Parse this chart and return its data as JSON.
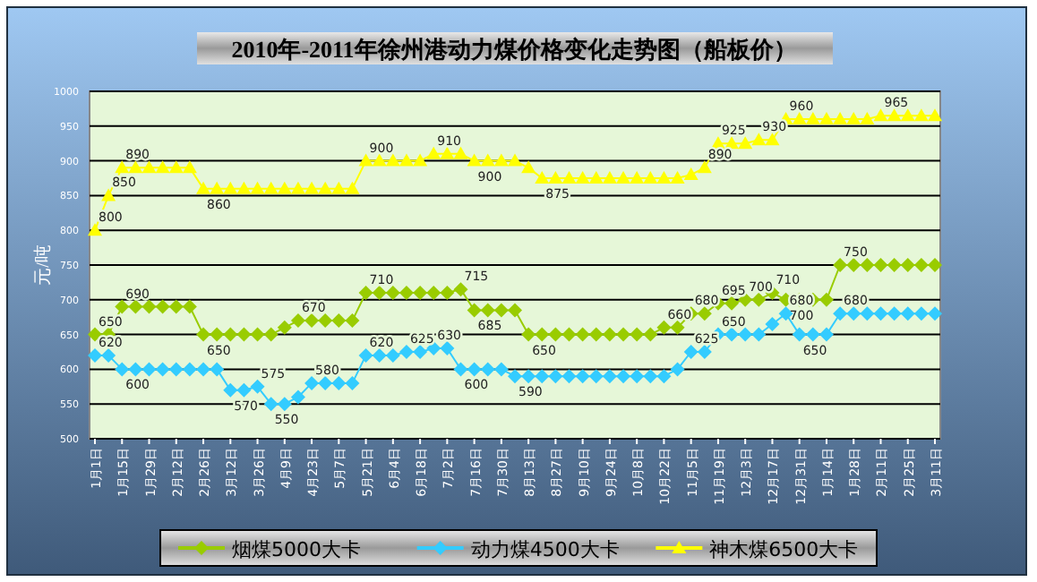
{
  "chart_data": {
    "type": "line",
    "title": "2010年-2011年徐州港动力煤价格变化走势图（船板价）",
    "ylabel": "元/吨",
    "categories": [
      "1月1日",
      null,
      "1月15日",
      null,
      "1月29日",
      null,
      "2月12日",
      null,
      "2月26日",
      null,
      "3月12日",
      null,
      "3月26日",
      null,
      "4月9日",
      null,
      "4月23日",
      null,
      "5月7日",
      null,
      "5月21日",
      null,
      "6月4日",
      null,
      "6月18日",
      null,
      "7月2日",
      null,
      "7月16日",
      null,
      "7月30日",
      null,
      "8月13日",
      null,
      "8月27日",
      null,
      "9月10日",
      null,
      "9月24日",
      null,
      "10月8日",
      null,
      "10月22日",
      null,
      "11月5日",
      null,
      "11月19日",
      null,
      "12月3日",
      null,
      "12月17日",
      null,
      "12月31日",
      null,
      "1月14日",
      null,
      "1月28日",
      null,
      "2月11日",
      null,
      "2月25日",
      null,
      "3月11日"
    ],
    "series": [
      {
        "name": "烟煤5000大卡",
        "color": "#99cc00",
        "marker": "diamond",
        "value_labels": [
          "650",
          null,
          "690",
          null,
          null,
          null,
          null,
          null,
          "650",
          null,
          null,
          null,
          null,
          null,
          null,
          "670",
          null,
          null,
          null,
          null,
          "710",
          null,
          null,
          null,
          null,
          null,
          null,
          "715",
          "685",
          null,
          null,
          null,
          "650",
          null,
          null,
          null,
          null,
          null,
          null,
          null,
          null,
          null,
          "660",
          null,
          "680",
          null,
          "695",
          null,
          "700",
          null,
          "710",
          "700",
          null,
          null,
          null,
          "750",
          null,
          null,
          null,
          null,
          null,
          null,
          null
        ],
        "values": [
          650,
          650,
          690,
          690,
          690,
          690,
          690,
          690,
          650,
          650,
          650,
          650,
          650,
          650,
          660,
          670,
          670,
          670,
          670,
          670,
          710,
          710,
          710,
          710,
          710,
          710,
          710,
          715,
          685,
          685,
          685,
          685,
          650,
          650,
          650,
          650,
          650,
          650,
          650,
          650,
          650,
          650,
          660,
          660,
          680,
          680,
          695,
          695,
          700,
          700,
          710,
          700,
          700,
          700,
          700,
          750,
          750,
          750,
          750,
          750,
          750,
          750,
          750
        ]
      },
      {
        "name": "动力煤4500大卡",
        "color": "#33ccff",
        "marker": "diamond",
        "value_labels": [
          "620",
          null,
          "600",
          null,
          null,
          null,
          null,
          null,
          null,
          null,
          "570",
          null,
          "575",
          "550",
          null,
          null,
          "580",
          null,
          null,
          null,
          "620",
          null,
          null,
          "625",
          null,
          "630",
          null,
          "600",
          null,
          null,
          null,
          "590",
          null,
          null,
          null,
          null,
          null,
          null,
          null,
          null,
          null,
          null,
          null,
          null,
          "625",
          null,
          "650",
          null,
          null,
          null,
          null,
          "680",
          "650",
          null,
          null,
          "680",
          null,
          null,
          null,
          null,
          null,
          null,
          null
        ],
        "values": [
          620,
          620,
          600,
          600,
          600,
          600,
          600,
          600,
          600,
          600,
          570,
          570,
          575,
          550,
          550,
          560,
          580,
          580,
          580,
          580,
          620,
          620,
          620,
          625,
          625,
          630,
          630,
          600,
          600,
          600,
          600,
          590,
          590,
          590,
          590,
          590,
          590,
          590,
          590,
          590,
          590,
          590,
          590,
          600,
          625,
          625,
          650,
          650,
          650,
          650,
          665,
          680,
          650,
          650,
          650,
          680,
          680,
          680,
          680,
          680,
          680,
          680,
          680
        ]
      },
      {
        "name": "神木煤6500大卡",
        "color": "#ffff00",
        "marker": "triangle",
        "value_labels": [
          "800",
          "850",
          "890",
          null,
          null,
          null,
          null,
          null,
          "860",
          null,
          null,
          null,
          null,
          null,
          null,
          null,
          null,
          null,
          null,
          null,
          "900",
          null,
          null,
          null,
          null,
          "910",
          null,
          null,
          "900",
          null,
          null,
          null,
          null,
          "875",
          null,
          null,
          null,
          null,
          null,
          null,
          null,
          null,
          null,
          null,
          null,
          "890",
          "925",
          null,
          null,
          "930",
          null,
          "960",
          null,
          null,
          null,
          null,
          null,
          null,
          "965",
          null,
          null,
          null,
          null
        ],
        "values": [
          800,
          850,
          890,
          890,
          890,
          890,
          890,
          890,
          860,
          860,
          860,
          860,
          860,
          860,
          860,
          860,
          860,
          860,
          860,
          860,
          900,
          900,
          900,
          900,
          900,
          910,
          910,
          910,
          900,
          900,
          900,
          900,
          890,
          875,
          875,
          875,
          875,
          875,
          875,
          875,
          875,
          875,
          875,
          875,
          880,
          890,
          925,
          925,
          925,
          930,
          930,
          960,
          960,
          960,
          960,
          960,
          960,
          960,
          965,
          965,
          965,
          965,
          965
        ]
      }
    ],
    "ylim": [
      500,
      1000
    ],
    "yticks": [
      500,
      550,
      600,
      650,
      700,
      750,
      800,
      850,
      900,
      950,
      1000
    ],
    "grid": "y",
    "legend": "bottom",
    "line_style": "solid"
  }
}
